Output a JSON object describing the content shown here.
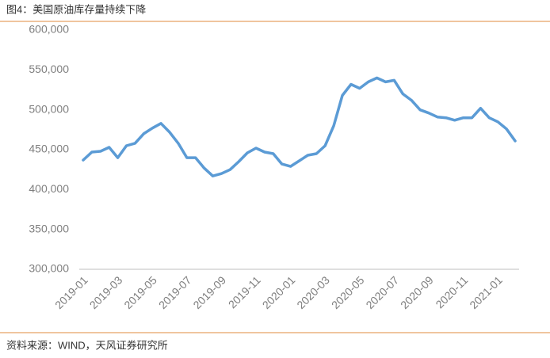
{
  "chart_data": {
    "type": "line",
    "title": "图4：美国原油库存量持续下降",
    "source": "资料来源：WIND，天风证券研究所",
    "categories": [
      "2019-01",
      null,
      null,
      null,
      "2019-03",
      null,
      null,
      null,
      "2019-05",
      null,
      null,
      null,
      "2019-07",
      null,
      null,
      null,
      "2019-09",
      null,
      null,
      null,
      "2019-11",
      null,
      null,
      null,
      "2020-01",
      null,
      null,
      null,
      "2020-03",
      null,
      null,
      null,
      "2020-05",
      null,
      null,
      null,
      "2020-07",
      null,
      null,
      null,
      "2020-09",
      null,
      null,
      null,
      "2020-11",
      null,
      null,
      null,
      "2021-01",
      null,
      null
    ],
    "series": [
      {
        "color": "#5b9bd5",
        "values": [
          437000,
          447000,
          448000,
          453000,
          440000,
          455000,
          458000,
          470000,
          477000,
          483000,
          472000,
          458000,
          440000,
          440000,
          427000,
          417000,
          420000,
          425000,
          435000,
          446000,
          452000,
          447000,
          445000,
          432000,
          429000,
          436000,
          443000,
          445000,
          455000,
          480000,
          518000,
          532000,
          527000,
          535000,
          540000,
          535000,
          537000,
          520000,
          512000,
          500000,
          496000,
          491000,
          490000,
          487000,
          490000,
          490000,
          502000,
          490000,
          485000,
          476000,
          461000
        ]
      }
    ],
    "ylim": [
      300000,
      600000
    ],
    "yticks": [
      {
        "value": 300000,
        "label": "300,000"
      },
      {
        "value": 350000,
        "label": "350,000"
      },
      {
        "value": 400000,
        "label": "400,000"
      },
      {
        "value": 450000,
        "label": "450,000"
      },
      {
        "value": 500000,
        "label": "500,000"
      },
      {
        "value": 550000,
        "label": "550,000"
      },
      {
        "value": 600000,
        "label": "600,000"
      }
    ],
    "grid": false
  }
}
